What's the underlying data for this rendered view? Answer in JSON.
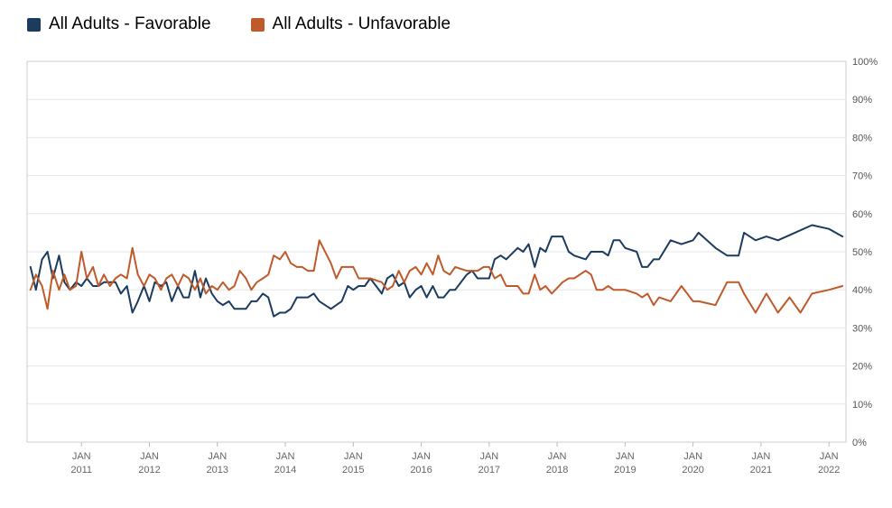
{
  "legend": {
    "items": [
      {
        "label": "All Adults - Favorable",
        "color": "#1c3c5f"
      },
      {
        "label": "All Adults - Unfavorable",
        "color": "#c05a2a"
      }
    ]
  },
  "chart_data": {
    "type": "line",
    "title": "",
    "xlabel": "",
    "ylabel": "",
    "xlim": [
      2010.2,
      2022.25
    ],
    "ylim": [
      0,
      100
    ],
    "yticks": [
      0,
      10,
      20,
      30,
      40,
      50,
      60,
      70,
      80,
      90,
      100
    ],
    "ytick_suffix": "%",
    "xticks": [
      2011,
      2012,
      2013,
      2014,
      2015,
      2016,
      2017,
      2018,
      2019,
      2020,
      2021,
      2022
    ],
    "xtick_label_top": "JAN",
    "grid": "horizontal",
    "legend_position": "top-left",
    "y_axis_side": "right",
    "series": [
      {
        "name": "All Adults - Favorable",
        "color": "#1c3c5f",
        "points": [
          [
            2010.25,
            46
          ],
          [
            2010.33,
            40
          ],
          [
            2010.42,
            48
          ],
          [
            2010.5,
            50
          ],
          [
            2010.58,
            43
          ],
          [
            2010.67,
            49
          ],
          [
            2010.75,
            42
          ],
          [
            2010.83,
            40
          ],
          [
            2010.92,
            42
          ],
          [
            2011.0,
            41
          ],
          [
            2011.08,
            43
          ],
          [
            2011.17,
            41
          ],
          [
            2011.25,
            41
          ],
          [
            2011.33,
            42
          ],
          [
            2011.42,
            42
          ],
          [
            2011.5,
            42
          ],
          [
            2011.58,
            39
          ],
          [
            2011.67,
            41
          ],
          [
            2011.75,
            34
          ],
          [
            2011.83,
            37
          ],
          [
            2011.92,
            41
          ],
          [
            2012.0,
            37
          ],
          [
            2012.08,
            42
          ],
          [
            2012.17,
            41
          ],
          [
            2012.25,
            42
          ],
          [
            2012.33,
            37
          ],
          [
            2012.42,
            41
          ],
          [
            2012.5,
            38
          ],
          [
            2012.58,
            38
          ],
          [
            2012.67,
            45
          ],
          [
            2012.75,
            38
          ],
          [
            2012.83,
            43
          ],
          [
            2012.92,
            39
          ],
          [
            2013.0,
            37
          ],
          [
            2013.08,
            36
          ],
          [
            2013.17,
            37
          ],
          [
            2013.25,
            35
          ],
          [
            2013.33,
            35
          ],
          [
            2013.42,
            35
          ],
          [
            2013.5,
            37
          ],
          [
            2013.58,
            37
          ],
          [
            2013.67,
            39
          ],
          [
            2013.75,
            38
          ],
          [
            2013.83,
            33
          ],
          [
            2013.92,
            34
          ],
          [
            2014.0,
            34
          ],
          [
            2014.08,
            35
          ],
          [
            2014.17,
            38
          ],
          [
            2014.25,
            38
          ],
          [
            2014.33,
            38
          ],
          [
            2014.42,
            39
          ],
          [
            2014.5,
            37
          ],
          [
            2014.67,
            35
          ],
          [
            2014.75,
            36
          ],
          [
            2014.83,
            37
          ],
          [
            2014.92,
            41
          ],
          [
            2015.0,
            40
          ],
          [
            2015.08,
            41
          ],
          [
            2015.17,
            41
          ],
          [
            2015.25,
            43
          ],
          [
            2015.42,
            39
          ],
          [
            2015.5,
            43
          ],
          [
            2015.58,
            44
          ],
          [
            2015.67,
            41
          ],
          [
            2015.75,
            42
          ],
          [
            2015.83,
            38
          ],
          [
            2015.92,
            40
          ],
          [
            2016.0,
            41
          ],
          [
            2016.08,
            38
          ],
          [
            2016.17,
            41
          ],
          [
            2016.25,
            38
          ],
          [
            2016.33,
            38
          ],
          [
            2016.42,
            40
          ],
          [
            2016.5,
            40
          ],
          [
            2016.67,
            44
          ],
          [
            2016.75,
            45
          ],
          [
            2016.83,
            43
          ],
          [
            2016.92,
            43
          ],
          [
            2017.0,
            43
          ],
          [
            2017.08,
            48
          ],
          [
            2017.17,
            49
          ],
          [
            2017.25,
            48
          ],
          [
            2017.42,
            51
          ],
          [
            2017.5,
            50
          ],
          [
            2017.58,
            52
          ],
          [
            2017.67,
            46
          ],
          [
            2017.75,
            51
          ],
          [
            2017.83,
            50
          ],
          [
            2017.92,
            54
          ],
          [
            2018.08,
            54
          ],
          [
            2018.17,
            50
          ],
          [
            2018.25,
            49
          ],
          [
            2018.42,
            48
          ],
          [
            2018.5,
            50
          ],
          [
            2018.58,
            50
          ],
          [
            2018.67,
            50
          ],
          [
            2018.75,
            49
          ],
          [
            2018.83,
            53
          ],
          [
            2018.92,
            53
          ],
          [
            2019.0,
            51
          ],
          [
            2019.17,
            50
          ],
          [
            2019.25,
            46
          ],
          [
            2019.33,
            46
          ],
          [
            2019.42,
            48
          ],
          [
            2019.5,
            48
          ],
          [
            2019.67,
            53
          ],
          [
            2019.83,
            52
          ],
          [
            2020.0,
            53
          ],
          [
            2020.08,
            55
          ],
          [
            2020.33,
            51
          ],
          [
            2020.5,
            49
          ],
          [
            2020.67,
            49
          ],
          [
            2020.75,
            55
          ],
          [
            2020.92,
            53
          ],
          [
            2021.08,
            54
          ],
          [
            2021.25,
            53
          ],
          [
            2021.5,
            55
          ],
          [
            2021.75,
            57
          ],
          [
            2022.0,
            56
          ],
          [
            2022.2,
            54
          ]
        ]
      },
      {
        "name": "All Adults - Unfavorable",
        "color": "#c05a2a",
        "points": [
          [
            2010.25,
            40
          ],
          [
            2010.33,
            44
          ],
          [
            2010.42,
            41
          ],
          [
            2010.5,
            35
          ],
          [
            2010.58,
            45
          ],
          [
            2010.67,
            40
          ],
          [
            2010.75,
            44
          ],
          [
            2010.83,
            40
          ],
          [
            2010.92,
            41
          ],
          [
            2011.0,
            50
          ],
          [
            2011.08,
            43
          ],
          [
            2011.17,
            46
          ],
          [
            2011.25,
            41
          ],
          [
            2011.33,
            44
          ],
          [
            2011.42,
            41
          ],
          [
            2011.5,
            43
          ],
          [
            2011.58,
            44
          ],
          [
            2011.67,
            43
          ],
          [
            2011.75,
            51
          ],
          [
            2011.83,
            44
          ],
          [
            2011.92,
            41
          ],
          [
            2012.0,
            44
          ],
          [
            2012.08,
            43
          ],
          [
            2012.17,
            40
          ],
          [
            2012.25,
            43
          ],
          [
            2012.33,
            44
          ],
          [
            2012.42,
            41
          ],
          [
            2012.5,
            44
          ],
          [
            2012.58,
            43
          ],
          [
            2012.67,
            40
          ],
          [
            2012.75,
            43
          ],
          [
            2012.83,
            39
          ],
          [
            2012.92,
            41
          ],
          [
            2013.0,
            40
          ],
          [
            2013.08,
            42
          ],
          [
            2013.17,
            40
          ],
          [
            2013.25,
            41
          ],
          [
            2013.33,
            45
          ],
          [
            2013.42,
            43
          ],
          [
            2013.5,
            40
          ],
          [
            2013.58,
            42
          ],
          [
            2013.67,
            43
          ],
          [
            2013.75,
            44
          ],
          [
            2013.83,
            49
          ],
          [
            2013.92,
            48
          ],
          [
            2014.0,
            50
          ],
          [
            2014.08,
            47
          ],
          [
            2014.17,
            46
          ],
          [
            2014.25,
            46
          ],
          [
            2014.33,
            45
          ],
          [
            2014.42,
            45
          ],
          [
            2014.5,
            53
          ],
          [
            2014.67,
            47
          ],
          [
            2014.75,
            43
          ],
          [
            2014.83,
            46
          ],
          [
            2014.92,
            46
          ],
          [
            2015.0,
            46
          ],
          [
            2015.08,
            43
          ],
          [
            2015.17,
            43
          ],
          [
            2015.25,
            43
          ],
          [
            2015.42,
            42
          ],
          [
            2015.5,
            40
          ],
          [
            2015.58,
            41
          ],
          [
            2015.67,
            45
          ],
          [
            2015.75,
            42
          ],
          [
            2015.83,
            45
          ],
          [
            2015.92,
            46
          ],
          [
            2016.0,
            44
          ],
          [
            2016.08,
            47
          ],
          [
            2016.17,
            44
          ],
          [
            2016.25,
            49
          ],
          [
            2016.33,
            45
          ],
          [
            2016.42,
            44
          ],
          [
            2016.5,
            46
          ],
          [
            2016.67,
            45
          ],
          [
            2016.75,
            45
          ],
          [
            2016.83,
            45
          ],
          [
            2016.92,
            46
          ],
          [
            2017.0,
            46
          ],
          [
            2017.08,
            43
          ],
          [
            2017.17,
            44
          ],
          [
            2017.25,
            41
          ],
          [
            2017.42,
            41
          ],
          [
            2017.5,
            39
          ],
          [
            2017.58,
            39
          ],
          [
            2017.67,
            44
          ],
          [
            2017.75,
            40
          ],
          [
            2017.83,
            41
          ],
          [
            2017.92,
            39
          ],
          [
            2018.08,
            42
          ],
          [
            2018.17,
            43
          ],
          [
            2018.25,
            43
          ],
          [
            2018.42,
            45
          ],
          [
            2018.5,
            44
          ],
          [
            2018.58,
            40
          ],
          [
            2018.67,
            40
          ],
          [
            2018.75,
            41
          ],
          [
            2018.83,
            40
          ],
          [
            2018.92,
            40
          ],
          [
            2019.0,
            40
          ],
          [
            2019.17,
            39
          ],
          [
            2019.25,
            38
          ],
          [
            2019.33,
            39
          ],
          [
            2019.42,
            36
          ],
          [
            2019.5,
            38
          ],
          [
            2019.67,
            37
          ],
          [
            2019.83,
            41
          ],
          [
            2020.0,
            37
          ],
          [
            2020.08,
            37
          ],
          [
            2020.33,
            36
          ],
          [
            2020.5,
            42
          ],
          [
            2020.67,
            42
          ],
          [
            2020.75,
            39
          ],
          [
            2020.92,
            34
          ],
          [
            2021.08,
            39
          ],
          [
            2021.25,
            34
          ],
          [
            2021.42,
            38
          ],
          [
            2021.58,
            34
          ],
          [
            2021.75,
            39
          ],
          [
            2022.0,
            40
          ],
          [
            2022.2,
            41
          ]
        ]
      }
    ]
  }
}
